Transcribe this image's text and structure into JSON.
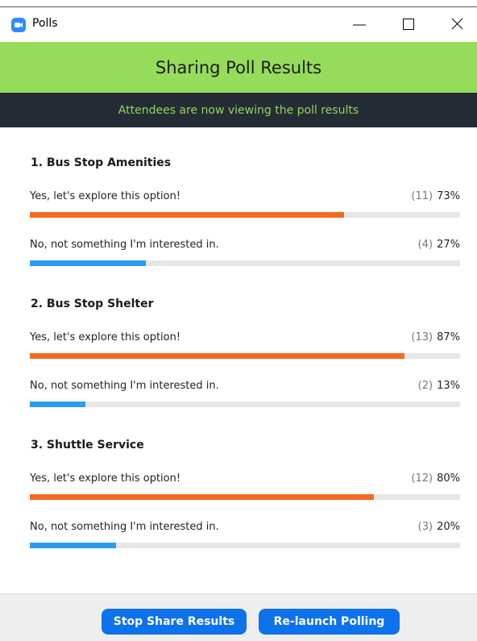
{
  "window": {
    "title": "Polls"
  },
  "header": {
    "title": "Sharing Poll Results",
    "subtitle": "Attendees are now viewing the poll results"
  },
  "questions": [
    {
      "title": "1. Bus Stop Amenities",
      "options": [
        {
          "label": "Yes, let's explore this option!",
          "count_label": "(11)",
          "percent": 73,
          "percent_label": "73%"
        },
        {
          "label": "No, not something I'm interested in.",
          "count_label": "(4)",
          "percent": 27,
          "percent_label": "27%"
        }
      ]
    },
    {
      "title": "2. Bus Stop Shelter",
      "options": [
        {
          "label": "Yes, let's explore this option!",
          "count_label": "(13)",
          "percent": 87,
          "percent_label": "87%"
        },
        {
          "label": "No, not something I'm interested in.",
          "count_label": "(2)",
          "percent": 13,
          "percent_label": "13%"
        }
      ]
    },
    {
      "title": "3. Shuttle Service",
      "options": [
        {
          "label": "Yes, let's explore this option!",
          "count_label": "(12)",
          "percent": 80,
          "percent_label": "80%"
        },
        {
          "label": "No, not something I'm interested in.",
          "count_label": "(3)",
          "percent": 20,
          "percent_label": "20%"
        }
      ]
    }
  ],
  "footer": {
    "buttons": [
      "Stop Share Results",
      "Re-launch Polling"
    ]
  }
}
